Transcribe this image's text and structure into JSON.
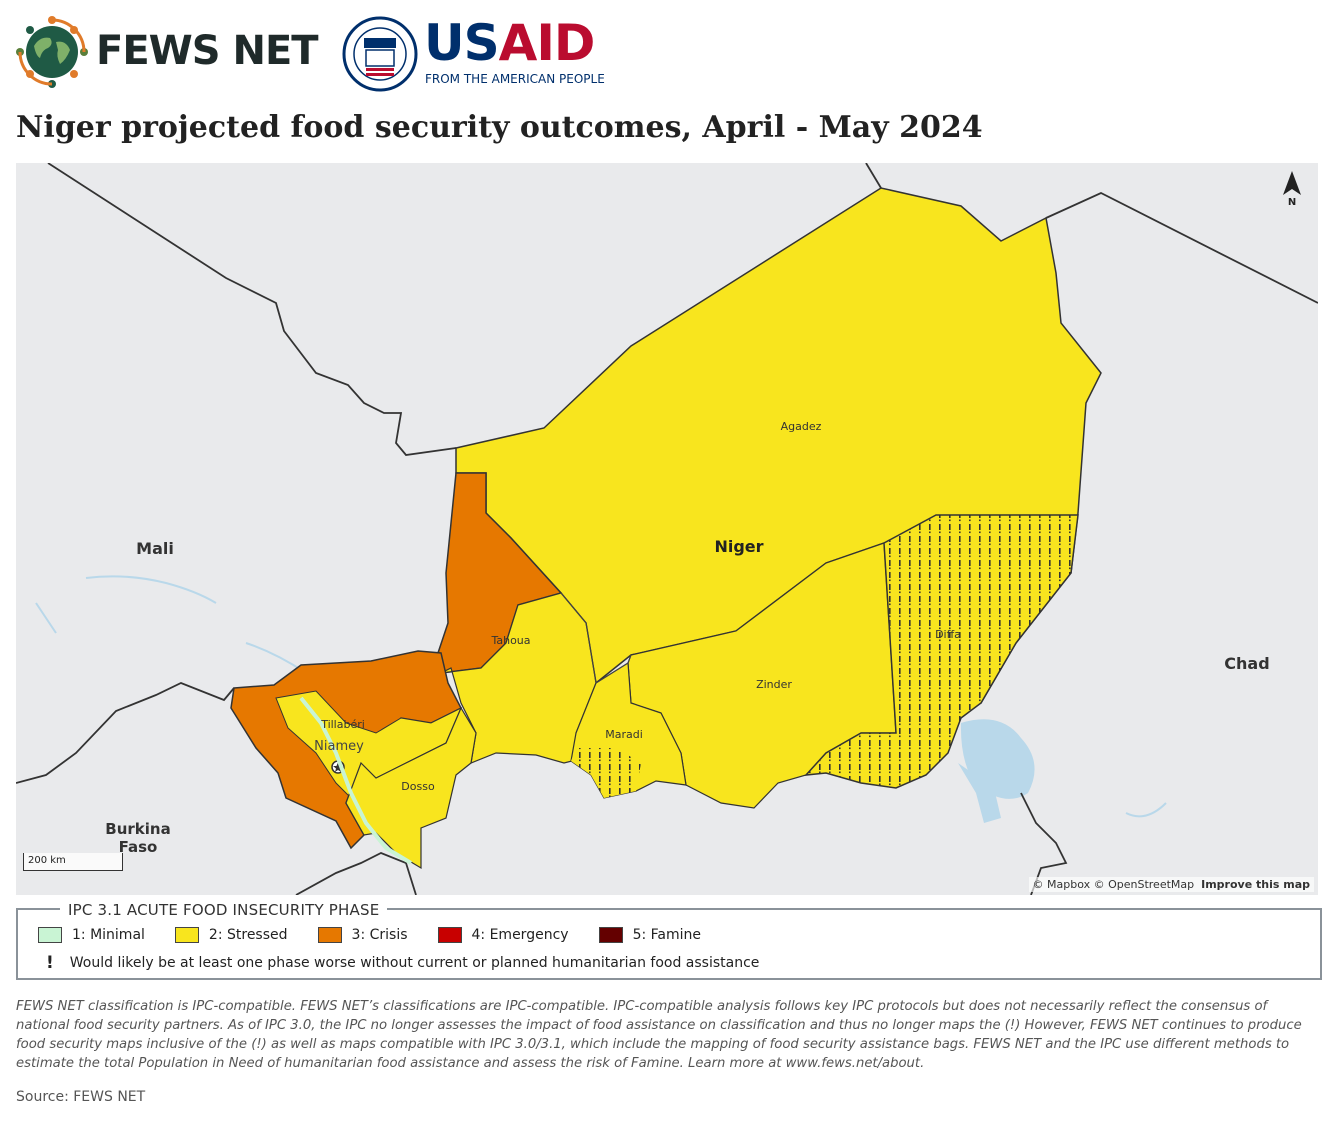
{
  "header": {
    "fews_logo_text": "FEWS NET",
    "usaid_us": "US",
    "usaid_aid": "AID",
    "usaid_tagline": "FROM THE AMERICAN PEOPLE",
    "usaid_seal_text": "USAID"
  },
  "title": "Niger projected food security outcomes, April - May 2024",
  "map": {
    "north_label": "N",
    "scale_label": "200 km",
    "attribution": "© Mapbox © OpenStreetMap",
    "attribution_link": "Improve this map",
    "country_labels": {
      "niger": "Niger",
      "mali": "Mali",
      "chad": "Chad",
      "burkina_line1": "Burkina",
      "burkina_line2": "Faso"
    },
    "region_labels": {
      "agadez": "Agadez",
      "tahoua": "Tahoua",
      "zinder": "Zinder",
      "diffa": "Diffa",
      "maradi": "Maradi",
      "tillaberi": "Tillabéri",
      "dosso": "Dosso",
      "niamey": "Niamey"
    },
    "regions": [
      {
        "name": "Agadez",
        "phase": 2
      },
      {
        "name": "Tahoua",
        "phase": "2 (north: 3)"
      },
      {
        "name": "Zinder",
        "phase": 2
      },
      {
        "name": "Diffa",
        "phase": 2,
        "humanitarian_assistance": true
      },
      {
        "name": "Maradi",
        "phase": 2
      },
      {
        "name": "Tillabéri",
        "phase": "3 / 2"
      },
      {
        "name": "Dosso",
        "phase": 2
      },
      {
        "name": "Niamey",
        "phase": 2
      }
    ]
  },
  "legend": {
    "title": "IPC 3.1 ACUTE FOOD INSECURITY PHASE",
    "items": [
      {
        "label": "1: Minimal",
        "color": "#c9f4d4"
      },
      {
        "label": "2: Stressed",
        "color": "#f8e51e"
      },
      {
        "label": "3: Crisis",
        "color": "#e67800"
      },
      {
        "label": "4: Emergency",
        "color": "#c80000"
      },
      {
        "label": "5: Famine",
        "color": "#640000"
      }
    ],
    "note_symbol": "!",
    "note": "Would likely be at least one phase worse without current or planned humanitarian food assistance"
  },
  "disclaimer": "FEWS NET classification is IPC-compatible. FEWS NET’s classifications are IPC-compatible. IPC-compatible analysis follows key IPC protocols but does not necessarily reflect the consensus of national food security partners. As of IPC 3.0, the IPC no longer assesses the impact of food assistance on classification and thus no longer maps the (!) However, FEWS NET continues to produce food security maps inclusive of the (!) as well as maps compatible with IPC 3.0/3.1, which include the mapping of food security assistance bags. FEWS NET and the IPC use different methods to estimate the total Population in Need of humanitarian food assistance and assess the risk of Famine. Learn more at www.fews.net/about.",
  "source": "Source: FEWS NET"
}
